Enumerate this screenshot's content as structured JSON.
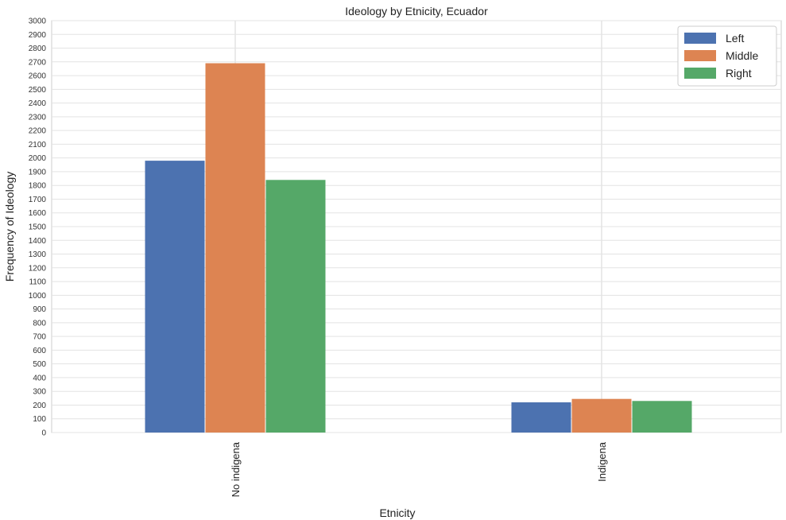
{
  "chart_data": {
    "type": "bar",
    "title": "Ideology by Etnicity, Ecuador",
    "xlabel": "Etnicity",
    "ylabel": "Frequency of Ideology",
    "categories": [
      "No indigena",
      "Indigena"
    ],
    "series": [
      {
        "name": "Left",
        "values": [
          1980,
          220
        ],
        "color": "#4c72b0"
      },
      {
        "name": "Middle",
        "values": [
          2690,
          245
        ],
        "color": "#dd8452"
      },
      {
        "name": "Right",
        "values": [
          1840,
          230
        ],
        "color": "#55a868"
      }
    ],
    "ylim": [
      0,
      3000
    ],
    "yticks": [
      0,
      100,
      200,
      300,
      400,
      500,
      600,
      700,
      800,
      900,
      1000,
      1100,
      1200,
      1300,
      1400,
      1500,
      1600,
      1700,
      1800,
      1900,
      2000,
      2100,
      2200,
      2300,
      2400,
      2500,
      2600,
      2700,
      2800,
      2900,
      3000
    ],
    "grid": true,
    "legend_position": "top-right",
    "x_tick_rotation": "vertical"
  }
}
